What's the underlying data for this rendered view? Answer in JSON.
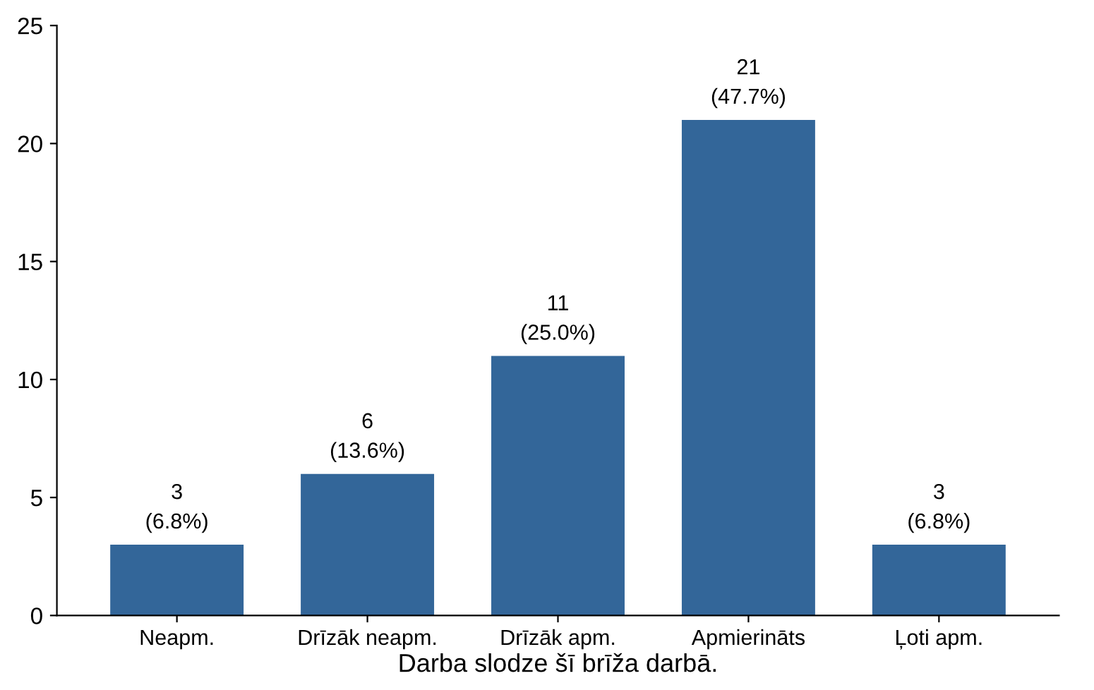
{
  "chart_data": {
    "type": "bar",
    "xlabel": "Darba slodze šī brīža darbā.",
    "categories": [
      "Neapm.",
      "Drīzāk neapm.",
      "Drīzāk apm.",
      "Apmierināts",
      "Ļoti apm."
    ],
    "values": [
      3,
      6,
      11,
      21,
      3
    ],
    "value_labels": [
      "3\n(6.8%)",
      "6\n(13.6%)",
      "11\n(25.0%)",
      "21\n(47.7%)",
      "3\n(6.8%)"
    ],
    "color": "#336699",
    "ylim": [
      0,
      25
    ],
    "yticks": [
      0,
      5,
      10,
      15,
      20,
      25
    ],
    "grid": false
  }
}
